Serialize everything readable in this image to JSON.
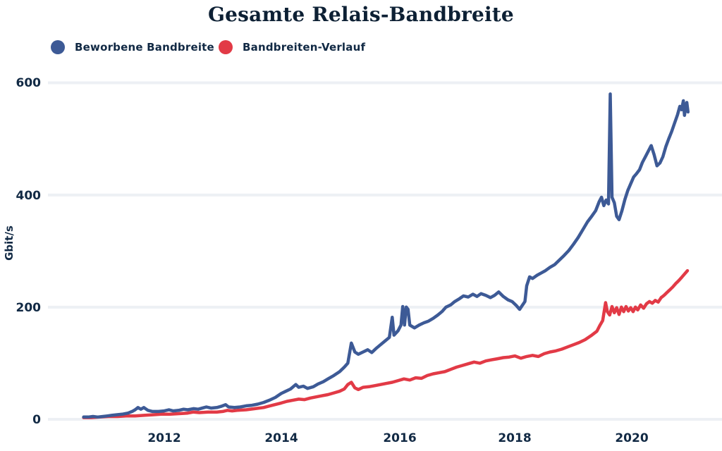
{
  "chart_data": {
    "type": "line",
    "title": "Gesamte Relais-Bandbreite",
    "ylabel": "Gbit/s",
    "xlabel": "",
    "grid": "horizontal",
    "legend_position": "top-left",
    "xlim": [
      2010.55,
      2021.05
    ],
    "ylim": [
      0,
      620
    ],
    "xtick_labels": [
      "2012",
      "2014",
      "2016",
      "2018",
      "2020"
    ],
    "xticks": [
      2012,
      2014,
      2016,
      2018,
      2020
    ],
    "ytick_labels": [
      "600",
      "400",
      "200",
      "0"
    ],
    "yticks": [
      600,
      400,
      200,
      0
    ],
    "series": [
      {
        "name": "Beworbene Bandbreite",
        "color": "#3d5a96",
        "points": [
          [
            2010.62,
            4
          ],
          [
            2010.7,
            4
          ],
          [
            2010.78,
            5
          ],
          [
            2010.86,
            4
          ],
          [
            2010.95,
            5
          ],
          [
            2011.03,
            6
          ],
          [
            2011.1,
            7
          ],
          [
            2011.18,
            8
          ],
          [
            2011.28,
            9
          ],
          [
            2011.38,
            11
          ],
          [
            2011.45,
            14
          ],
          [
            2011.5,
            17
          ],
          [
            2011.55,
            21
          ],
          [
            2011.6,
            18
          ],
          [
            2011.65,
            21
          ],
          [
            2011.72,
            16
          ],
          [
            2011.8,
            14
          ],
          [
            2011.9,
            14
          ],
          [
            2012.0,
            15
          ],
          [
            2012.08,
            17
          ],
          [
            2012.15,
            15
          ],
          [
            2012.25,
            16
          ],
          [
            2012.33,
            18
          ],
          [
            2012.4,
            17
          ],
          [
            2012.5,
            19
          ],
          [
            2012.58,
            18
          ],
          [
            2012.65,
            20
          ],
          [
            2012.72,
            22
          ],
          [
            2012.8,
            20
          ],
          [
            2012.9,
            21
          ],
          [
            2012.97,
            23
          ],
          [
            2013.05,
            26
          ],
          [
            2013.1,
            22
          ],
          [
            2013.2,
            21
          ],
          [
            2013.3,
            22
          ],
          [
            2013.4,
            24
          ],
          [
            2013.5,
            25
          ],
          [
            2013.6,
            27
          ],
          [
            2013.7,
            30
          ],
          [
            2013.8,
            34
          ],
          [
            2013.9,
            39
          ],
          [
            2014.0,
            46
          ],
          [
            2014.08,
            50
          ],
          [
            2014.16,
            54
          ],
          [
            2014.25,
            62
          ],
          [
            2014.3,
            57
          ],
          [
            2014.38,
            59
          ],
          [
            2014.45,
            55
          ],
          [
            2014.55,
            58
          ],
          [
            2014.63,
            63
          ],
          [
            2014.72,
            67
          ],
          [
            2014.8,
            72
          ],
          [
            2014.9,
            78
          ],
          [
            2015.0,
            85
          ],
          [
            2015.08,
            93
          ],
          [
            2015.14,
            100
          ],
          [
            2015.2,
            136
          ],
          [
            2015.26,
            120
          ],
          [
            2015.32,
            116
          ],
          [
            2015.4,
            120
          ],
          [
            2015.48,
            124
          ],
          [
            2015.55,
            119
          ],
          [
            2015.62,
            126
          ],
          [
            2015.7,
            133
          ],
          [
            2015.78,
            140
          ],
          [
            2015.85,
            146
          ],
          [
            2015.9,
            182
          ],
          [
            2015.93,
            150
          ],
          [
            2016.0,
            158
          ],
          [
            2016.05,
            168
          ],
          [
            2016.08,
            201
          ],
          [
            2016.11,
            168
          ],
          [
            2016.14,
            200
          ],
          [
            2016.17,
            196
          ],
          [
            2016.2,
            168
          ],
          [
            2016.28,
            163
          ],
          [
            2016.36,
            168
          ],
          [
            2016.44,
            172
          ],
          [
            2016.52,
            175
          ],
          [
            2016.6,
            180
          ],
          [
            2016.68,
            186
          ],
          [
            2016.75,
            192
          ],
          [
            2016.82,
            200
          ],
          [
            2016.9,
            204
          ],
          [
            2016.97,
            210
          ],
          [
            2017.05,
            215
          ],
          [
            2017.12,
            220
          ],
          [
            2017.2,
            218
          ],
          [
            2017.28,
            223
          ],
          [
            2017.35,
            219
          ],
          [
            2017.42,
            224
          ],
          [
            2017.5,
            221
          ],
          [
            2017.58,
            217
          ],
          [
            2017.65,
            221
          ],
          [
            2017.72,
            227
          ],
          [
            2017.8,
            219
          ],
          [
            2017.88,
            213
          ],
          [
            2017.95,
            210
          ],
          [
            2018.02,
            203
          ],
          [
            2018.08,
            196
          ],
          [
            2018.13,
            204
          ],
          [
            2018.17,
            210
          ],
          [
            2018.2,
            238
          ],
          [
            2018.25,
            254
          ],
          [
            2018.3,
            251
          ],
          [
            2018.38,
            257
          ],
          [
            2018.45,
            261
          ],
          [
            2018.52,
            265
          ],
          [
            2018.6,
            271
          ],
          [
            2018.68,
            276
          ],
          [
            2018.76,
            284
          ],
          [
            2018.84,
            292
          ],
          [
            2018.92,
            301
          ],
          [
            2019.0,
            312
          ],
          [
            2019.08,
            324
          ],
          [
            2019.16,
            338
          ],
          [
            2019.24,
            352
          ],
          [
            2019.32,
            363
          ],
          [
            2019.38,
            372
          ],
          [
            2019.44,
            388
          ],
          [
            2019.48,
            396
          ],
          [
            2019.52,
            381
          ],
          [
            2019.56,
            391
          ],
          [
            2019.6,
            384
          ],
          [
            2019.63,
            580
          ],
          [
            2019.66,
            396
          ],
          [
            2019.7,
            386
          ],
          [
            2019.74,
            362
          ],
          [
            2019.78,
            356
          ],
          [
            2019.83,
            372
          ],
          [
            2019.88,
            392
          ],
          [
            2019.93,
            408
          ],
          [
            2019.98,
            420
          ],
          [
            2020.03,
            432
          ],
          [
            2020.08,
            438
          ],
          [
            2020.13,
            445
          ],
          [
            2020.18,
            458
          ],
          [
            2020.23,
            468
          ],
          [
            2020.28,
            478
          ],
          [
            2020.33,
            488
          ],
          [
            2020.38,
            472
          ],
          [
            2020.43,
            452
          ],
          [
            2020.48,
            457
          ],
          [
            2020.53,
            468
          ],
          [
            2020.58,
            486
          ],
          [
            2020.63,
            500
          ],
          [
            2020.68,
            513
          ],
          [
            2020.73,
            528
          ],
          [
            2020.78,
            543
          ],
          [
            2020.82,
            558
          ],
          [
            2020.85,
            552
          ],
          [
            2020.88,
            568
          ],
          [
            2020.9,
            542
          ],
          [
            2020.92,
            556
          ],
          [
            2020.94,
            565
          ],
          [
            2020.96,
            548
          ]
        ]
      },
      {
        "name": "Bandbreiten-Verlauf",
        "color": "#e23a46",
        "points": [
          [
            2010.62,
            3
          ],
          [
            2010.75,
            3
          ],
          [
            2010.9,
            4
          ],
          [
            2011.05,
            5
          ],
          [
            2011.2,
            5
          ],
          [
            2011.35,
            6
          ],
          [
            2011.5,
            6
          ],
          [
            2011.65,
            7
          ],
          [
            2011.8,
            8
          ],
          [
            2011.95,
            9
          ],
          [
            2012.1,
            9
          ],
          [
            2012.25,
            10
          ],
          [
            2012.4,
            11
          ],
          [
            2012.5,
            13
          ],
          [
            2012.6,
            12
          ],
          [
            2012.75,
            13
          ],
          [
            2012.9,
            13
          ],
          [
            2013.0,
            14
          ],
          [
            2013.08,
            16
          ],
          [
            2013.16,
            15
          ],
          [
            2013.25,
            16
          ],
          [
            2013.4,
            17
          ],
          [
            2013.55,
            19
          ],
          [
            2013.7,
            21
          ],
          [
            2013.85,
            25
          ],
          [
            2014.0,
            29
          ],
          [
            2014.1,
            32
          ],
          [
            2014.2,
            34
          ],
          [
            2014.3,
            36
          ],
          [
            2014.4,
            35
          ],
          [
            2014.5,
            38
          ],
          [
            2014.6,
            40
          ],
          [
            2014.7,
            42
          ],
          [
            2014.8,
            44
          ],
          [
            2014.9,
            47
          ],
          [
            2015.0,
            50
          ],
          [
            2015.08,
            54
          ],
          [
            2015.14,
            62
          ],
          [
            2015.2,
            66
          ],
          [
            2015.26,
            56
          ],
          [
            2015.32,
            53
          ],
          [
            2015.4,
            57
          ],
          [
            2015.5,
            58
          ],
          [
            2015.6,
            60
          ],
          [
            2015.7,
            62
          ],
          [
            2015.8,
            64
          ],
          [
            2015.9,
            66
          ],
          [
            2016.0,
            69
          ],
          [
            2016.1,
            72
          ],
          [
            2016.2,
            70
          ],
          [
            2016.3,
            74
          ],
          [
            2016.4,
            73
          ],
          [
            2016.5,
            78
          ],
          [
            2016.6,
            81
          ],
          [
            2016.7,
            83
          ],
          [
            2016.8,
            85
          ],
          [
            2016.9,
            89
          ],
          [
            2017.0,
            93
          ],
          [
            2017.1,
            96
          ],
          [
            2017.2,
            99
          ],
          [
            2017.3,
            102
          ],
          [
            2017.4,
            100
          ],
          [
            2017.5,
            104
          ],
          [
            2017.6,
            106
          ],
          [
            2017.7,
            108
          ],
          [
            2017.8,
            110
          ],
          [
            2017.9,
            111
          ],
          [
            2018.0,
            113
          ],
          [
            2018.1,
            109
          ],
          [
            2018.2,
            112
          ],
          [
            2018.3,
            114
          ],
          [
            2018.4,
            112
          ],
          [
            2018.5,
            117
          ],
          [
            2018.6,
            120
          ],
          [
            2018.7,
            122
          ],
          [
            2018.8,
            125
          ],
          [
            2018.9,
            129
          ],
          [
            2019.0,
            133
          ],
          [
            2019.1,
            137
          ],
          [
            2019.2,
            142
          ],
          [
            2019.3,
            149
          ],
          [
            2019.4,
            157
          ],
          [
            2019.45,
            167
          ],
          [
            2019.5,
            176
          ],
          [
            2019.55,
            208
          ],
          [
            2019.58,
            192
          ],
          [
            2019.62,
            186
          ],
          [
            2019.66,
            201
          ],
          [
            2019.7,
            190
          ],
          [
            2019.74,
            199
          ],
          [
            2019.78,
            187
          ],
          [
            2019.82,
            200
          ],
          [
            2019.86,
            192
          ],
          [
            2019.9,
            201
          ],
          [
            2019.94,
            193
          ],
          [
            2019.98,
            199
          ],
          [
            2020.02,
            192
          ],
          [
            2020.06,
            200
          ],
          [
            2020.1,
            195
          ],
          [
            2020.15,
            204
          ],
          [
            2020.2,
            198
          ],
          [
            2020.25,
            206
          ],
          [
            2020.3,
            210
          ],
          [
            2020.35,
            207
          ],
          [
            2020.4,
            212
          ],
          [
            2020.45,
            209
          ],
          [
            2020.5,
            217
          ],
          [
            2020.55,
            221
          ],
          [
            2020.6,
            226
          ],
          [
            2020.65,
            231
          ],
          [
            2020.7,
            236
          ],
          [
            2020.75,
            242
          ],
          [
            2020.8,
            247
          ],
          [
            2020.85,
            253
          ],
          [
            2020.9,
            259
          ],
          [
            2020.95,
            265
          ]
        ]
      }
    ]
  },
  "legend": {
    "items": [
      {
        "label": "Beworbene Bandbreite",
        "color": "#3d5a96"
      },
      {
        "label": "Bandbreiten-Verlauf",
        "color": "#e23a46"
      }
    ]
  },
  "colors": {
    "title_text": "#0d2034",
    "axis_text": "#112944",
    "gridline": "#edf0f4",
    "background": "#ffffff"
  }
}
